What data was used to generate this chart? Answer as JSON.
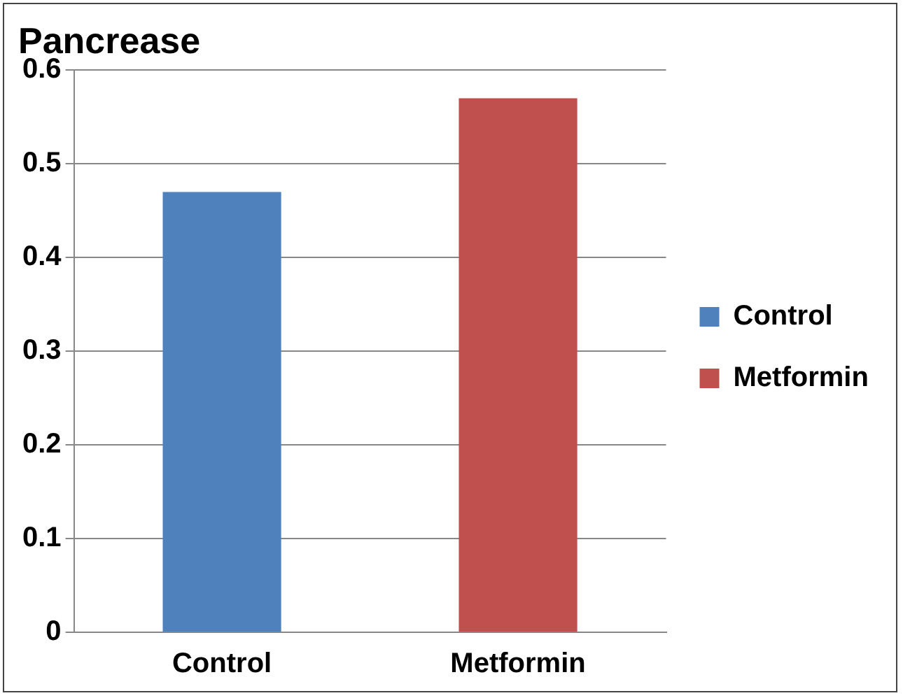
{
  "chart_data": {
    "type": "bar",
    "title": "Pancrease",
    "categories": [
      "Control",
      "Metformin"
    ],
    "series": [
      {
        "name": "Control",
        "color": "#4f81bd",
        "values": [
          0.47,
          null
        ]
      },
      {
        "name": "Metformin",
        "color": "#c0504d",
        "values": [
          null,
          0.57
        ]
      }
    ],
    "ylim": [
      0,
      0.6
    ],
    "yticks": [
      0,
      0.1,
      0.2,
      0.3,
      0.4,
      0.5,
      0.6
    ],
    "grid": "y",
    "legend": "right"
  }
}
